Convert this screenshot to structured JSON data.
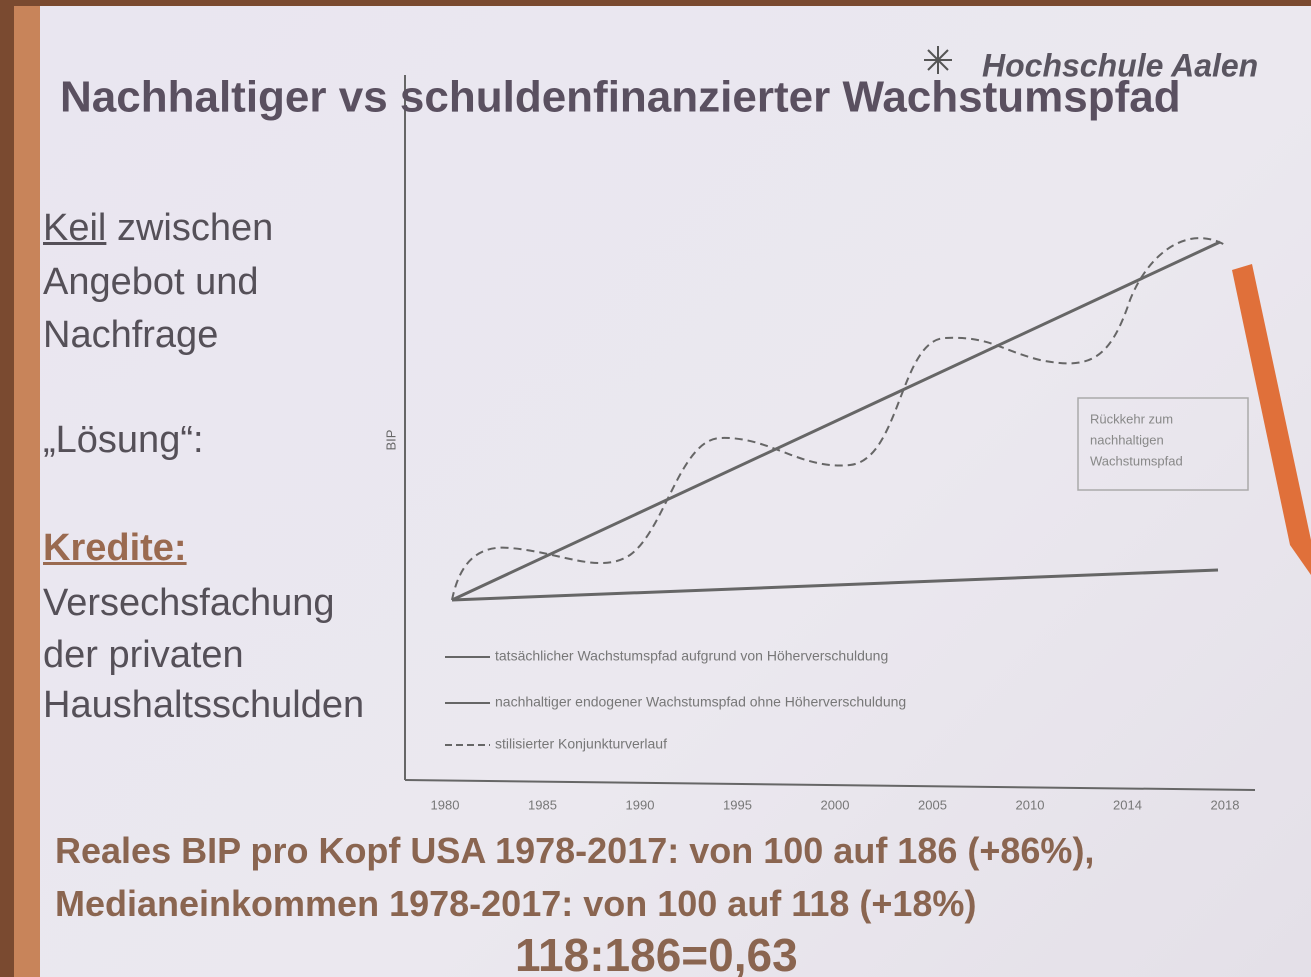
{
  "logo": "Hochschule Aalen",
  "title": "Nachhaltiger vs schuldenfinanzierter Wachstumspfad",
  "left_text": {
    "keyword": "Keil",
    "keyword_rest": "zwischen",
    "lines": [
      "Angebot und",
      "Nachfrage"
    ],
    "solution": "„Lösung“:",
    "credit_heading": "Kredite:",
    "credit_lines": [
      "Versechsfachung",
      "der privaten",
      "Haushaltsschulden"
    ]
  },
  "chart": {
    "y_label": "BIP",
    "x_ticks": [
      "1980",
      "1985",
      "1990",
      "1995",
      "2000",
      "2005",
      "2010",
      "2014",
      "2018"
    ],
    "legend": [
      "tatsächlicher Wachstumspfad aufgrund von Höherverschuldung",
      "nachhaltiger endogener Wachstumspfad ohne Höherverschuldung",
      "stilisierter Konjunkturverlauf"
    ],
    "annotation": [
      "Rückkehr zum",
      "nachhaltigen",
      "Wachstumspfad"
    ]
  },
  "footer": [
    "Reales BIP pro Kopf USA 1978-2017: von 100 auf 186 (+86%),",
    "Medianeinkommen 1978-2017: von 100 auf 118 (+18%)",
    "118:186=0,63"
  ]
}
